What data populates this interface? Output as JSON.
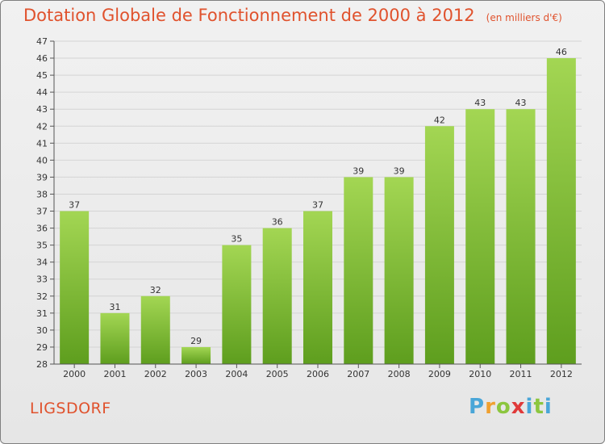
{
  "header": {
    "title": "Dotation Globale de Fonctionnement de 2000 à 2012",
    "unit": "(en milliers d'€)"
  },
  "commune": "LIGSDORF",
  "logo_text": "Proxiti",
  "colors": {
    "title": "#e0522d",
    "bar_light": "#9fd14f",
    "bar_dark": "#5e9e1e",
    "grid": "#d4d4d4"
  },
  "chart_data": {
    "type": "bar",
    "categories": [
      "2000",
      "2001",
      "2002",
      "2003",
      "2004",
      "2005",
      "2006",
      "2007",
      "2008",
      "2009",
      "2010",
      "2011",
      "2012"
    ],
    "values": [
      37,
      31,
      32,
      29,
      35,
      36,
      37,
      39,
      39,
      42,
      43,
      43,
      46
    ],
    "title": "Dotation Globale de Fonctionnement de 2000 à 2012",
    "ylim": [
      28,
      47
    ],
    "yticks": [
      28,
      29,
      30,
      31,
      32,
      33,
      34,
      35,
      36,
      37,
      38,
      39,
      40,
      41,
      42,
      43,
      44,
      45,
      46,
      47
    ],
    "grid": true
  }
}
